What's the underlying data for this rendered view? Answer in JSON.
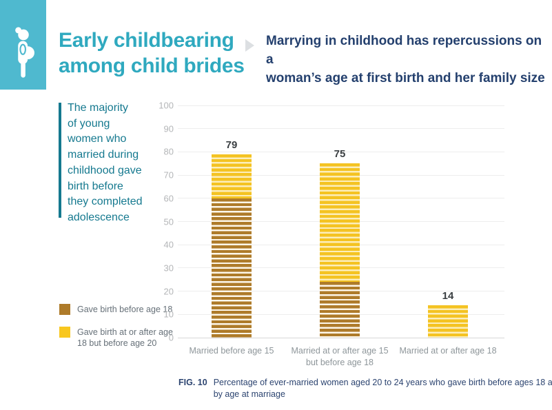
{
  "header": {
    "title": "Early childbearing\namong child brides",
    "subtitle": "Marrying in childhood has repercussions on a\nwoman’s age at first birth and her family size"
  },
  "callout": {
    "text": "The majority\nof young\nwomen who\nmarried during\nchildhood gave\nbirth before\nthey completed\nadolescence"
  },
  "legend": {
    "items": [
      {
        "label": "Gave birth before age 18",
        "color": "#ae7b2a"
      },
      {
        "label": "Gave birth at or after age\n18 but before age 20",
        "color": "#f8c71f"
      }
    ]
  },
  "chart_data": {
    "type": "bar",
    "stacked": true,
    "title": "",
    "xlabel": "",
    "ylabel": "",
    "ylim": [
      0,
      100
    ],
    "ytick_step": 10,
    "grid": true,
    "legend_position": "left",
    "categories": [
      "Married before age 15",
      "Married at or after age 15\nbut before age 18",
      "Married at or after age 18"
    ],
    "series": [
      {
        "name": "Gave birth before age 18",
        "color": "#ae7b2a",
        "stripe_light": "#fdf7ea",
        "values": [
          60,
          24,
          0
        ]
      },
      {
        "name": "Gave birth at or after age 18 but before age 20",
        "color": "#f4c322",
        "stripe_light": "#fceebb",
        "values": [
          19,
          51,
          14
        ]
      }
    ],
    "totals": [
      79,
      75,
      14
    ]
  },
  "caption": {
    "fig_label": "FIG. 10",
    "text": "Percentage of ever-married women aged 20 to 24 years who gave birth before ages 18 and 20,\nby age at marriage"
  },
  "colors": {
    "brand_teal": "#4fb9cf",
    "title_teal": "#2fa9bf",
    "callout_teal": "#15798f",
    "navy": "#24406e",
    "gridline": "#ededed",
    "axis_label": "#b4b6b8"
  }
}
